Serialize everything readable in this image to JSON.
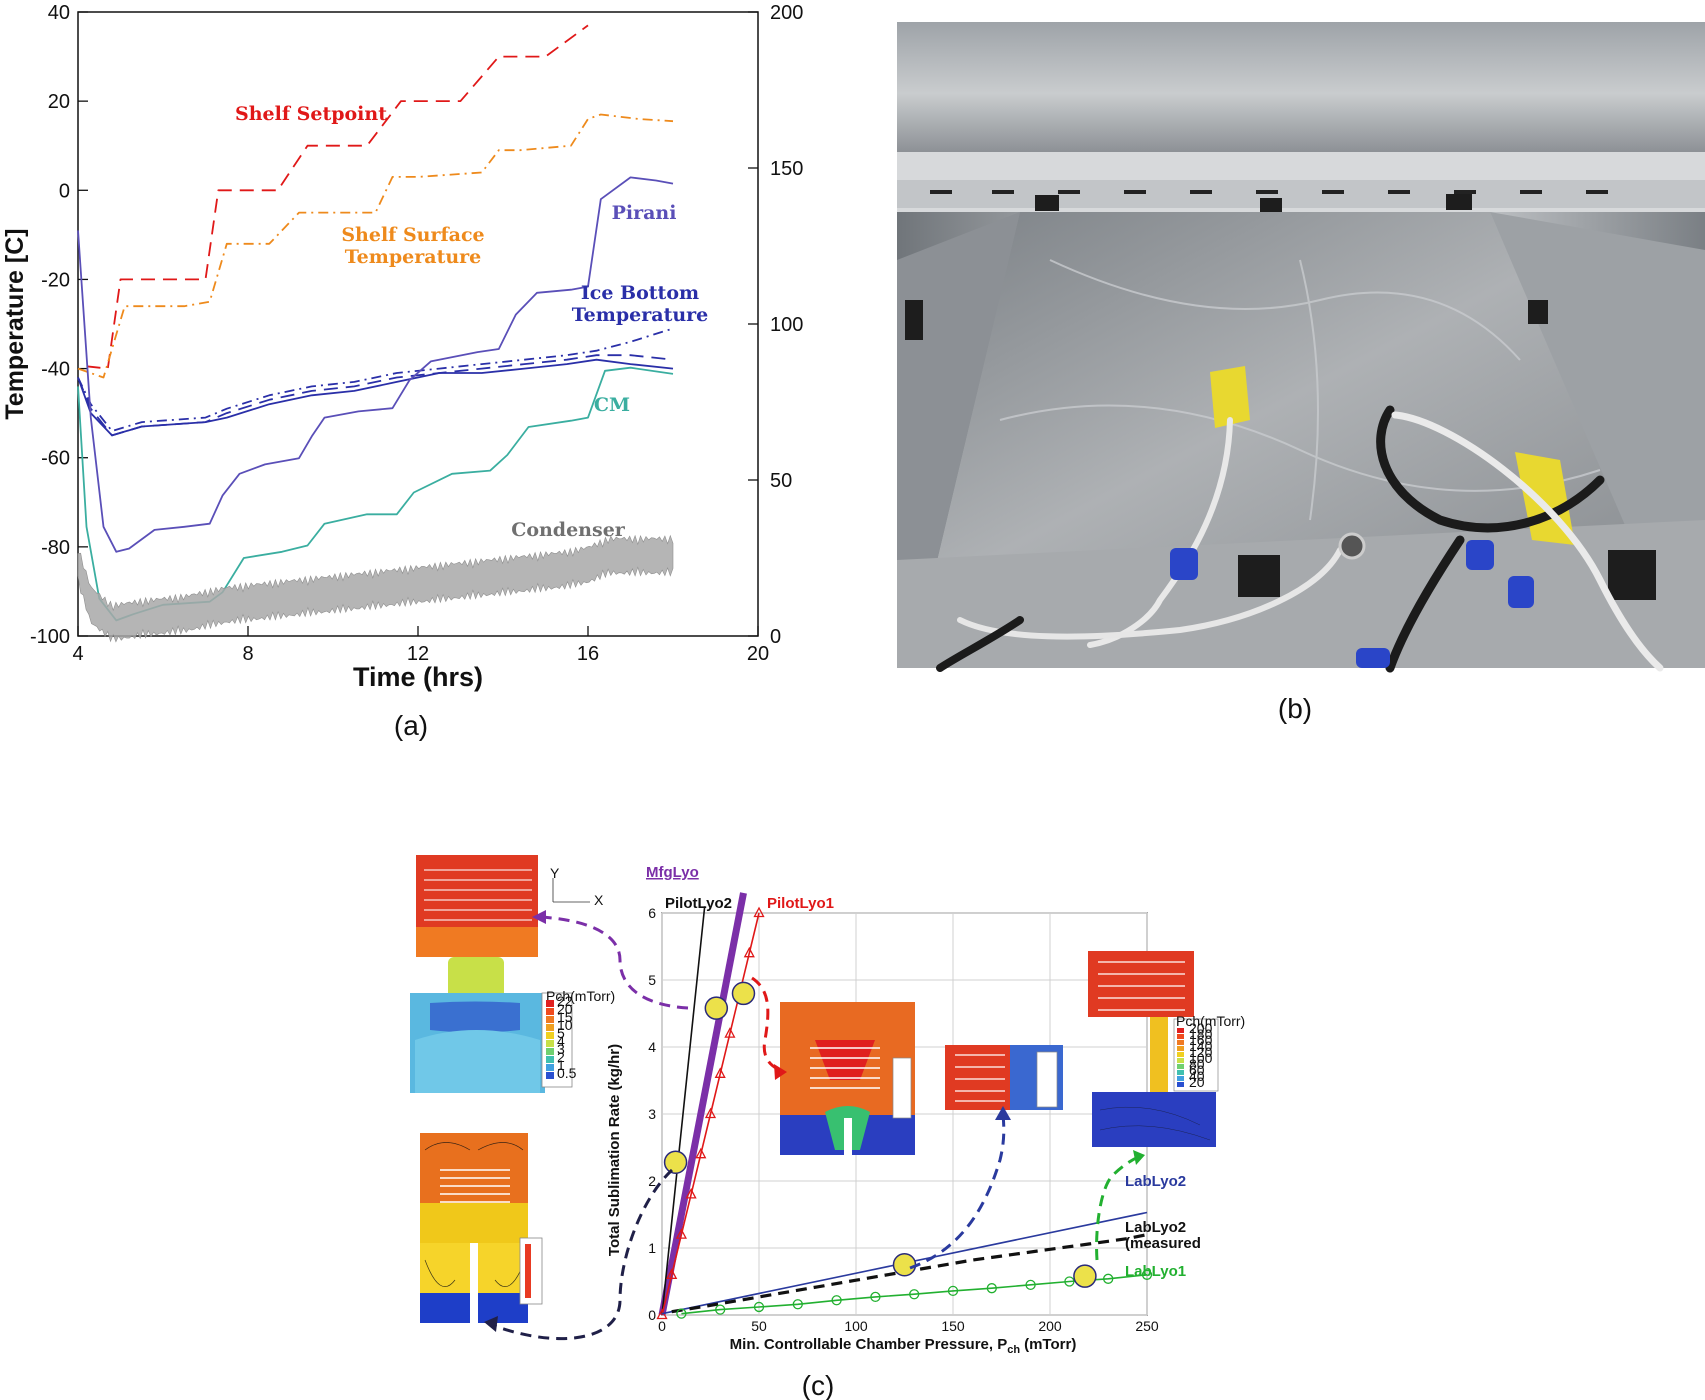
{
  "panel_labels": {
    "a": "(a)",
    "b": "(b)",
    "c": "(c)"
  },
  "colors": {
    "shelf_setpoint": "#e01818",
    "shelf_surface": "#ee8a1c",
    "pirani": "#5a4fb8",
    "ice_bottom": "#2a2fa8",
    "cm": "#3aaea0",
    "condenser": "#a8a8a8",
    "mfglyo": "#7b2fa8",
    "pilotlyo1": "#e01818",
    "pilotlyo2": "#111111",
    "lablyo2": "#2a3a9e",
    "lablyo2_measured": "#111111",
    "lablyo1": "#22b030"
  },
  "chart_data": [
    {
      "type": "line",
      "xlabel": "Time (hrs)",
      "ylabel": "Temperature [C]",
      "xlim": [
        4,
        20
      ],
      "ylim": [
        -100,
        40
      ],
      "y2lim": [
        0,
        200
      ],
      "xticks": [
        "4",
        "8",
        "12",
        "16",
        "20"
      ],
      "yticks": [
        "40",
        "20",
        "0",
        "-20",
        "-40",
        "-60",
        "-80",
        "-100"
      ],
      "y2ticks": [
        "200",
        "150",
        "100",
        "50",
        "0"
      ],
      "grid": false,
      "series": [
        {
          "name": "Shelf Setpoint",
          "label_lines": [
            "Shelf Setpoint"
          ],
          "axis": "left",
          "style": "dash",
          "x": [
            4.2,
            4.7,
            5.0,
            5.0,
            7.0,
            7.3,
            7.3,
            8.7,
            9.4,
            9.4,
            10.8,
            11.6,
            11.6,
            13.0,
            13.9,
            13.9,
            15.0,
            16.0,
            16.0
          ],
          "y": [
            -39.5,
            -40,
            -20,
            -20,
            -20,
            0,
            0,
            0,
            10,
            10,
            10,
            20,
            20,
            20,
            30,
            30,
            30,
            37,
            37
          ]
        },
        {
          "name": "Shelf Surface Temperature",
          "label_lines": [
            "Shelf Surface",
            "Temperature"
          ],
          "axis": "left",
          "style": "dashdot",
          "x": [
            4.0,
            4.6,
            5.1,
            6.5,
            7.1,
            7.5,
            8.5,
            9.2,
            9.7,
            11.0,
            11.4,
            12.0,
            13.5,
            13.9,
            14.4,
            15.6,
            16.0,
            16.3,
            17.2,
            18.0
          ],
          "y": [
            -40,
            -42,
            -26,
            -26,
            -25,
            -12,
            -12,
            -5,
            -5,
            -5,
            3,
            3,
            4,
            9,
            9,
            10,
            16,
            17,
            16,
            15.5
          ]
        },
        {
          "name": "Ice Bottom Temperature",
          "label_lines": [
            "Ice Bottom",
            "Temperature"
          ],
          "axis": "left",
          "style": "dashdot",
          "x": [
            4.0,
            4.3,
            4.8,
            5.5,
            7.0,
            7.5,
            8.5,
            9.5,
            10.5,
            11.5,
            12.5,
            13.5,
            14.5,
            15.5,
            16.2,
            17.0,
            18.0
          ],
          "y": [
            -42,
            -48,
            -54,
            -52,
            -51,
            -49,
            -46,
            -44,
            -43,
            -41,
            -40,
            -39,
            -38,
            -37,
            -36,
            -34,
            -31
          ]
        },
        {
          "name": "Ice Bottom Temperature (2)",
          "axis": "left",
          "style": "dash",
          "x": [
            4.0,
            4.3,
            4.8,
            5.5,
            7.0,
            7.5,
            8.5,
            9.5,
            10.5,
            11.5,
            12.5,
            13.5,
            14.5,
            15.5,
            16.2,
            17.0,
            18.0
          ],
          "y": [
            -42,
            -49,
            -55,
            -53,
            -52,
            -50,
            -47,
            -45,
            -44,
            -42,
            -41,
            -40,
            -39,
            -38,
            -37,
            -37,
            -38
          ]
        },
        {
          "name": "Ice Bottom Temperature (3)",
          "axis": "left",
          "style": "solid",
          "x": [
            4.0,
            4.3,
            4.8,
            5.5,
            7.0,
            7.5,
            8.5,
            9.5,
            10.5,
            11.5,
            12.5,
            13.5,
            14.5,
            15.5,
            16.2,
            17.0,
            18.0
          ],
          "y": [
            -42,
            -50,
            -55,
            -53,
            -52,
            -51,
            -48,
            -46,
            -45,
            -43,
            -41,
            -41,
            -40,
            -39,
            -38,
            -39,
            -40
          ]
        },
        {
          "name": "Pirani",
          "label_lines": [
            "Pirani"
          ],
          "axis": "right",
          "style": "solid",
          "x": [
            4.0,
            4.3,
            4.6,
            4.9,
            5.2,
            5.8,
            6.5,
            7.1,
            7.4,
            7.8,
            8.4,
            9.2,
            9.5,
            9.8,
            10.6,
            11.4,
            11.8,
            12.3,
            13.4,
            13.9,
            14.3,
            14.8,
            15.6,
            16.0,
            16.3,
            17.0,
            17.6,
            18.0
          ],
          "y": [
            130,
            70,
            35,
            27,
            28,
            34,
            35,
            36,
            45,
            52,
            55,
            57,
            64,
            70,
            72,
            73,
            82,
            88,
            91,
            92,
            103,
            110,
            111,
            112,
            140,
            147,
            146,
            145
          ]
        },
        {
          "name": "CM",
          "label_lines": [
            "CM"
          ],
          "axis": "right",
          "style": "solid",
          "x": [
            4.0,
            4.2,
            4.5,
            4.9,
            5.3,
            6.0,
            7.1,
            7.4,
            7.9,
            8.8,
            9.4,
            9.8,
            10.8,
            11.5,
            11.9,
            12.8,
            13.7,
            14.1,
            14.6,
            15.6,
            16.0,
            16.4,
            17.0,
            18.0
          ],
          "y": [
            80,
            35,
            12,
            5,
            7,
            10,
            11,
            14,
            25,
            27,
            29,
            36,
            39,
            39,
            46,
            52,
            53,
            58,
            67,
            69,
            70,
            85,
            86,
            84
          ]
        },
        {
          "name": "Condenser",
          "label_lines": [
            "Condenser"
          ],
          "axis": "left",
          "style": "noisy-band",
          "x": [
            4.0,
            4.3,
            4.8,
            5.5,
            6.5,
            7.5,
            8.5,
            9.5,
            10.5,
            11.5,
            12.5,
            13.5,
            14.5,
            15.5,
            16.0,
            16.5,
            17.0,
            18.0
          ],
          "y": [
            -84,
            -93,
            -97,
            -96,
            -95,
            -93,
            -92,
            -91,
            -90,
            -89,
            -88,
            -87,
            -86,
            -85,
            -84,
            -82,
            -82,
            -82
          ]
        }
      ]
    },
    {
      "type": "line",
      "xlabel": "Min. Controllable Chamber Pressure, P",
      "xlabel_sub": "ch",
      "xlabel_unit": "(mTorr)",
      "ylabel": "Total Sublimation Rate (kg/hr)",
      "xlim": [
        0,
        250
      ],
      "ylim": [
        0,
        6
      ],
      "xticks": [
        "0",
        "50",
        "100",
        "150",
        "200",
        "250"
      ],
      "yticks": [
        "6",
        "5",
        "4",
        "3",
        "2",
        "1",
        "0"
      ],
      "grid": true,
      "title": "MfgLyo",
      "series": [
        {
          "name": "MfgLyo",
          "label_lines": [
            "MfgLyo"
          ],
          "style": "thick",
          "x": [
            0,
            42
          ],
          "y": [
            0,
            6.3
          ]
        },
        {
          "name": "PilotLyo2",
          "label_lines": [
            "PilotLyo2"
          ],
          "style": "solid",
          "x": [
            0,
            22
          ],
          "y": [
            0,
            6.1
          ]
        },
        {
          "name": "PilotLyo1",
          "label_lines": [
            "PilotLyo1"
          ],
          "style": "triangles",
          "x": [
            0,
            5,
            10,
            15,
            20,
            25,
            30,
            35,
            40,
            45,
            50
          ],
          "y": [
            0,
            0.6,
            1.2,
            1.8,
            2.4,
            3.0,
            3.6,
            4.2,
            4.8,
            5.4,
            6.0
          ]
        },
        {
          "name": "LabLyo2",
          "label_lines": [
            "LabLyo2"
          ],
          "style": "solid",
          "x": [
            0,
            250
          ],
          "y": [
            0.02,
            1.53
          ]
        },
        {
          "name": "LabLyo2 (measured)",
          "label_lines": [
            "LabLyo2",
            "(measured"
          ],
          "style": "thick-dash",
          "x": [
            5,
            20,
            40,
            60,
            80,
            100,
            120,
            140,
            160,
            180,
            200,
            220,
            240,
            250
          ],
          "y": [
            0.05,
            0.12,
            0.22,
            0.32,
            0.42,
            0.52,
            0.62,
            0.72,
            0.82,
            0.9,
            0.98,
            1.06,
            1.14,
            1.2
          ]
        },
        {
          "name": "LabLyo1",
          "label_lines": [
            "LabLyo1"
          ],
          "style": "circles",
          "x": [
            10,
            30,
            50,
            70,
            90,
            110,
            130,
            150,
            170,
            190,
            210,
            230,
            250
          ],
          "y": [
            0.02,
            0.08,
            0.12,
            0.16,
            0.22,
            0.27,
            0.31,
            0.36,
            0.4,
            0.45,
            0.5,
            0.54,
            0.6
          ]
        }
      ],
      "highlight_points": [
        {
          "x": 7,
          "y": 2.28
        },
        {
          "x": 28,
          "y": 4.58
        },
        {
          "x": 42,
          "y": 4.8
        },
        {
          "x": 125,
          "y": 0.75
        },
        {
          "x": 218,
          "y": 0.58
        }
      ],
      "inset_legends": {
        "top_left": {
          "title": "Pch(mTorr)",
          "entries": [
            "22",
            "20",
            "15",
            "10",
            "5",
            "4",
            "3",
            "2",
            "1",
            "0.5"
          ]
        },
        "right": {
          "title": "Pch(mTorr)",
          "entries": [
            "200",
            "180",
            "160",
            "140",
            "120",
            "100",
            "80",
            "60",
            "40",
            "20"
          ]
        }
      },
      "axis_glyphs": {
        "y": "Y",
        "x": "X"
      }
    }
  ]
}
